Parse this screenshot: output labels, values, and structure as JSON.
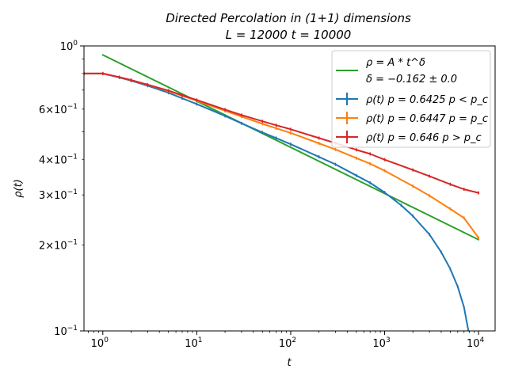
{
  "chart_data": {
    "type": "line",
    "title_line1": "Directed Percolation in (1+1) dimensions",
    "title_line2": "L = 12000 t = 10000",
    "xlabel": "t",
    "ylabel": "ρ(t)",
    "xscale": "log",
    "yscale": "log",
    "xlim": [
      0.63,
      15000
    ],
    "ylim": [
      0.1,
      1.0
    ],
    "grid": false,
    "legend_position": "top-right",
    "x_ticks": [
      {
        "value": 1,
        "base": "10",
        "exp": "0"
      },
      {
        "value": 10,
        "base": "10",
        "exp": "1"
      },
      {
        "value": 100,
        "base": "10",
        "exp": "2"
      },
      {
        "value": 1000,
        "base": "10",
        "exp": "3"
      },
      {
        "value": 10000,
        "base": "10",
        "exp": "4"
      }
    ],
    "y_ticks": [
      {
        "value": 0.1,
        "base": "10",
        "exp": "−1",
        "mant": ""
      },
      {
        "value": 0.2,
        "base": "10",
        "exp": "−1",
        "mant": "2×"
      },
      {
        "value": 0.3,
        "base": "10",
        "exp": "−1",
        "mant": "3×"
      },
      {
        "value": 0.4,
        "base": "10",
        "exp": "−1",
        "mant": "4×"
      },
      {
        "value": 0.6,
        "base": "10",
        "exp": "−1",
        "mant": "6×"
      },
      {
        "value": 1.0,
        "base": "10",
        "exp": "0",
        "mant": ""
      }
    ],
    "series": [
      {
        "key": "fit",
        "legend_line1": "ρ = A * t^δ",
        "legend_line2": "δ = −0.162 ± 0.0",
        "color": "#2ca02c",
        "kind": "fit",
        "x": [
          1,
          10000
        ],
        "y": [
          0.93,
          0.209
        ]
      },
      {
        "key": "below",
        "legend": "ρ(t) p = 0.6425 p < p_c",
        "color": "#1f77b4",
        "kind": "errorbar",
        "x": [
          0.63,
          1,
          1.5,
          2,
          3,
          5,
          7,
          10,
          20,
          30,
          50,
          70,
          100,
          200,
          300,
          500,
          700,
          1000,
          1500,
          2000,
          3000,
          4000,
          5000,
          6000,
          7000,
          7800
        ],
        "y": [
          0.8,
          0.8,
          0.775,
          0.755,
          0.725,
          0.685,
          0.655,
          0.625,
          0.568,
          0.535,
          0.497,
          0.475,
          0.452,
          0.408,
          0.384,
          0.351,
          0.331,
          0.306,
          0.276,
          0.253,
          0.218,
          0.189,
          0.165,
          0.143,
          0.121,
          0.1
        ]
      },
      {
        "key": "critical",
        "legend": "ρ(t) p = 0.6447 p = p_c",
        "color": "#ff7f0e",
        "kind": "errorbar",
        "x": [
          0.63,
          1,
          1.5,
          2,
          3,
          5,
          7,
          10,
          20,
          30,
          50,
          70,
          100,
          200,
          300,
          500,
          700,
          1000,
          2000,
          3000,
          5000,
          7000,
          10000
        ],
        "y": [
          0.8,
          0.8,
          0.777,
          0.758,
          0.73,
          0.695,
          0.668,
          0.642,
          0.592,
          0.565,
          0.533,
          0.514,
          0.495,
          0.455,
          0.433,
          0.404,
          0.386,
          0.365,
          0.322,
          0.298,
          0.268,
          0.249,
          0.212
        ]
      },
      {
        "key": "above",
        "legend": "ρ(t) p = 0.646 p > p_c",
        "color": "#d62728",
        "kind": "errorbar",
        "x": [
          0.63,
          1,
          1.5,
          2,
          3,
          5,
          7,
          10,
          20,
          30,
          50,
          70,
          100,
          200,
          300,
          500,
          700,
          1000,
          2000,
          3000,
          5000,
          7000,
          10000
        ],
        "y": [
          0.8,
          0.8,
          0.777,
          0.759,
          0.731,
          0.697,
          0.671,
          0.646,
          0.598,
          0.572,
          0.544,
          0.527,
          0.51,
          0.475,
          0.456,
          0.432,
          0.418,
          0.399,
          0.367,
          0.349,
          0.327,
          0.314,
          0.305
        ]
      }
    ]
  }
}
